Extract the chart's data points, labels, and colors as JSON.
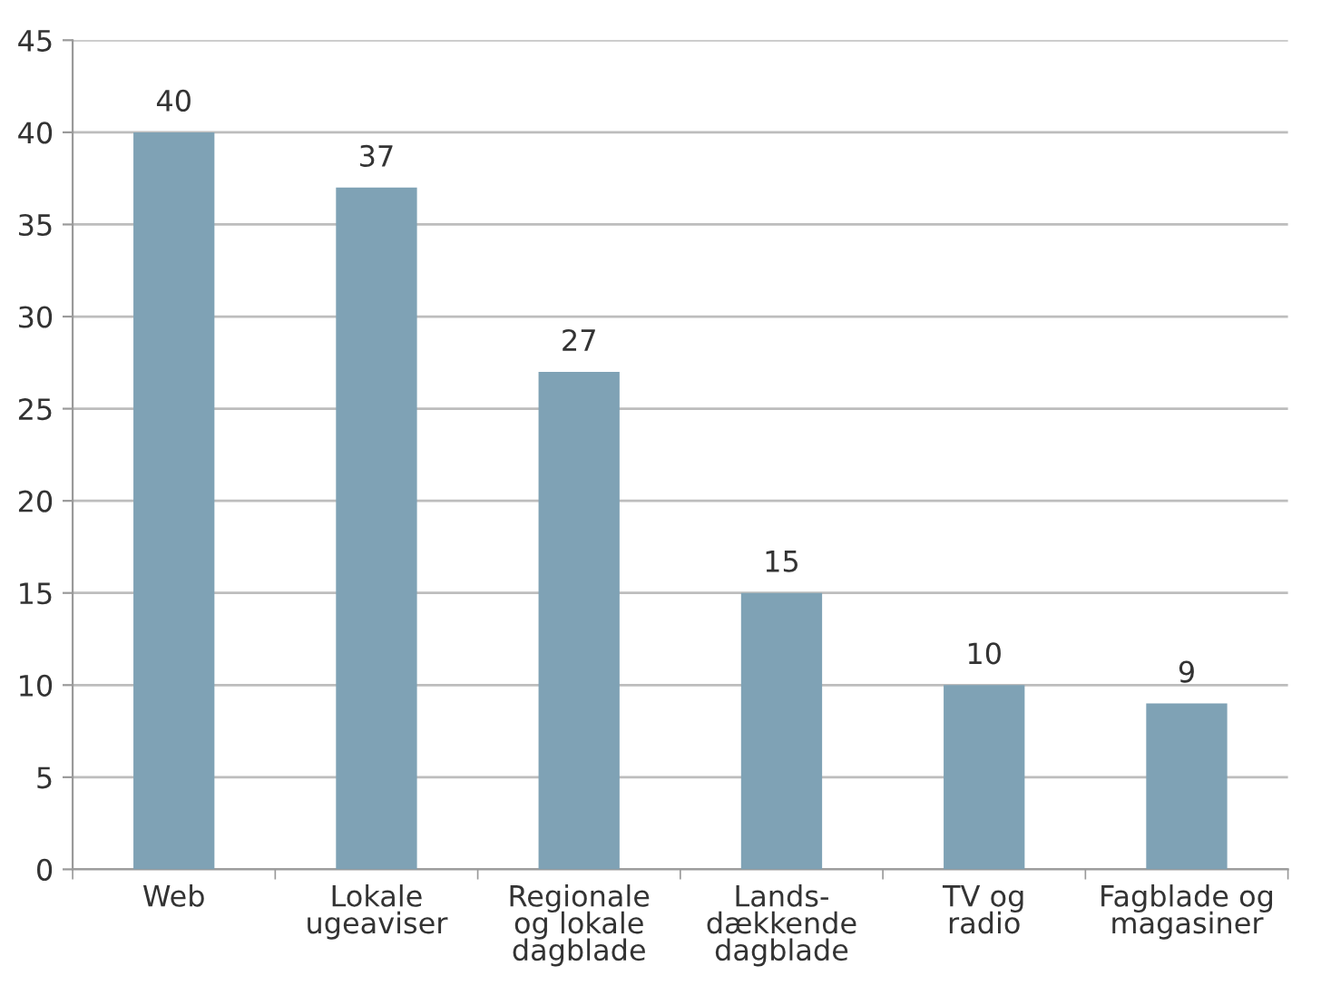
{
  "chart_data": {
    "type": "bar",
    "categories": [
      "Web",
      "Lokale\nugeaviser",
      "Regionale\nog lokale\ndagblade",
      "Lands-\ndækkende\ndagblade",
      "TV og\nradio",
      "Fagblade og\nmagasiner"
    ],
    "values": [
      40,
      37,
      27,
      15,
      10,
      9
    ],
    "color": "#7fa2b5",
    "ylim": [
      0,
      45
    ],
    "yticks": [
      0,
      5,
      10,
      15,
      20,
      25,
      30,
      35,
      40,
      45
    ],
    "grid": "y",
    "data_labels": true
  }
}
